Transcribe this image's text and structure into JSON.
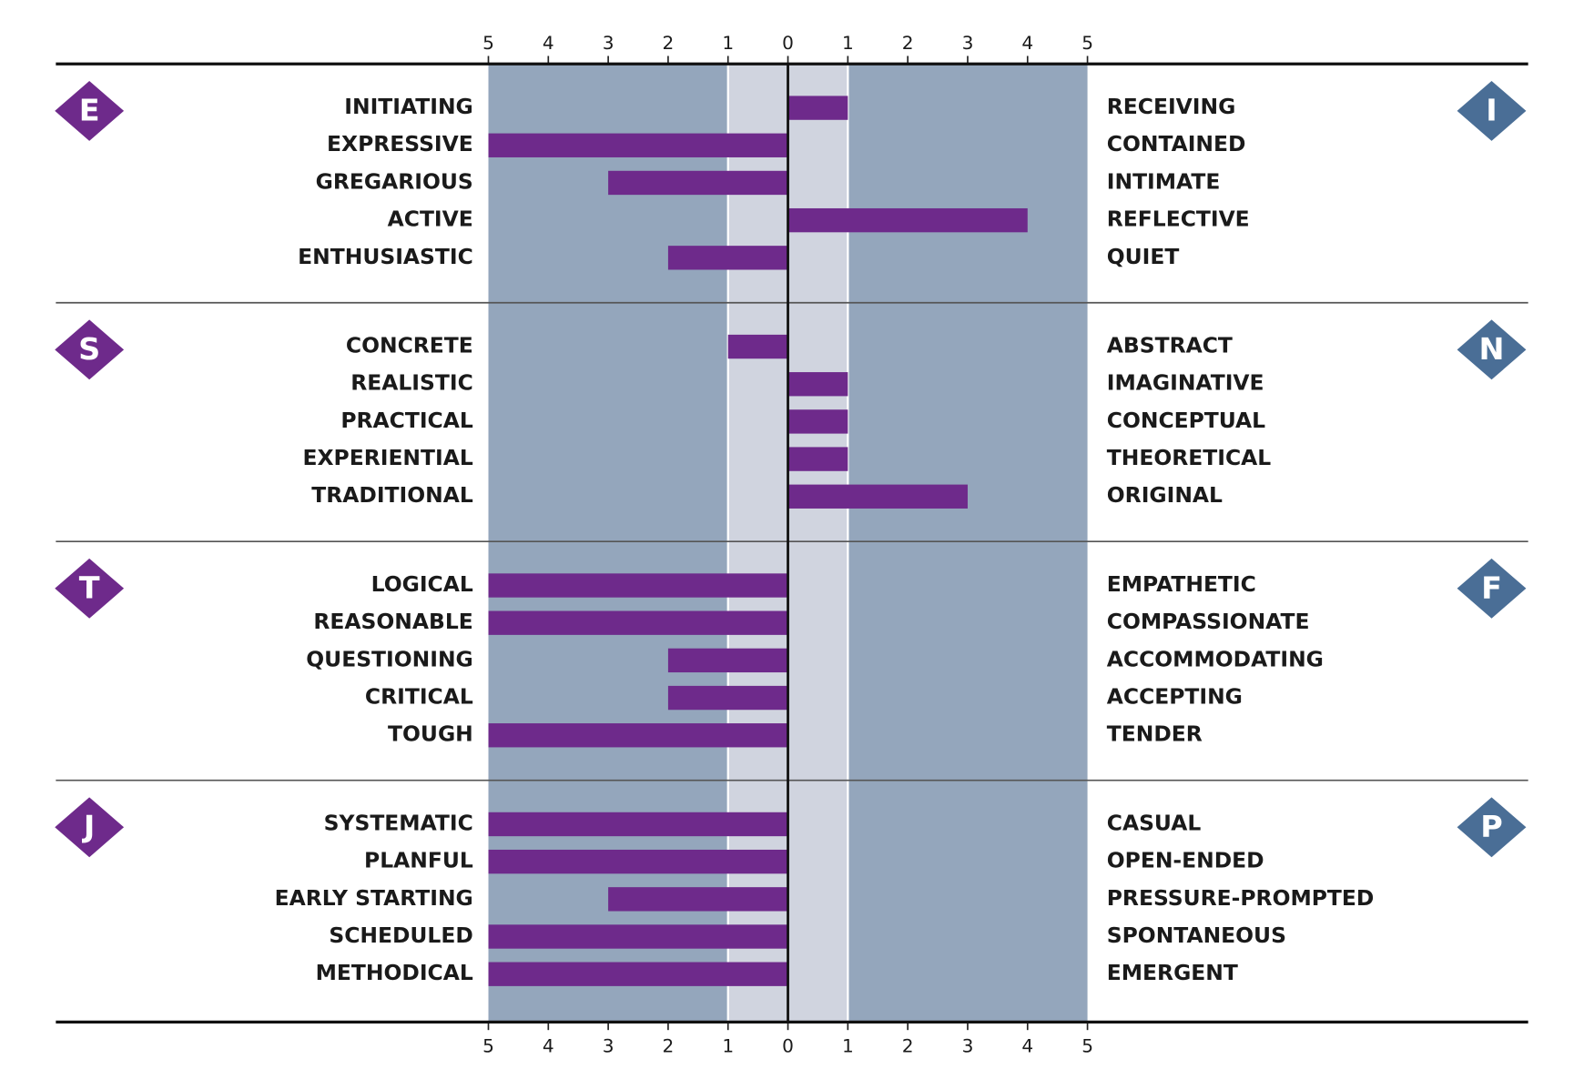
{
  "chart_data": {
    "type": "diverging_bar",
    "xlim": [
      -5,
      5
    ],
    "xticks": [
      {
        "value": -5,
        "label": "5"
      },
      {
        "value": -4,
        "label": "4"
      },
      {
        "value": -3,
        "label": "3"
      },
      {
        "value": -2,
        "label": "2"
      },
      {
        "value": -1,
        "label": "1"
      },
      0,
      1,
      2,
      3,
      4,
      5
    ],
    "color": "#6e2a8b",
    "left_pole_color": "#6e2a8b",
    "right_pole_color": "#4a6e96",
    "groups": [
      {
        "left_pole": "E",
        "right_pole": "I",
        "left_labels": [
          "INITIATING",
          "EXPRESSIVE",
          "GREGARIOUS",
          "ACTIVE",
          "ENTHUSIASTIC"
        ],
        "right_labels": [
          "RECEIVING",
          "CONTAINED",
          "INTIMATE",
          "REFLECTIVE",
          "QUIET"
        ],
        "values": [
          1,
          -5,
          -3,
          4,
          -2
        ]
      },
      {
        "left_pole": "S",
        "right_pole": "N",
        "left_labels": [
          "CONCRETE",
          "REALISTIC",
          "PRACTICAL",
          "EXPERIENTIAL",
          "TRADITIONAL"
        ],
        "right_labels": [
          "ABSTRACT",
          "IMAGINATIVE",
          "CONCEPTUAL",
          "THEORETICAL",
          "ORIGINAL"
        ],
        "values": [
          -1,
          1,
          1,
          1,
          3
        ]
      },
      {
        "left_pole": "T",
        "right_pole": "F",
        "left_labels": [
          "LOGICAL",
          "REASONABLE",
          "QUESTIONING",
          "CRITICAL",
          "TOUGH"
        ],
        "right_labels": [
          "EMPATHETIC",
          "COMPASSIONATE",
          "ACCOMMODATING",
          "ACCEPTING",
          "TENDER"
        ],
        "values": [
          -5,
          -5,
          -2,
          -2,
          -5
        ]
      },
      {
        "left_pole": "J",
        "right_pole": "P",
        "left_labels": [
          "SYSTEMATIC",
          "PLANFUL",
          "EARLY STARTING",
          "SCHEDULED",
          "METHODICAL"
        ],
        "right_labels": [
          "CASUAL",
          "OPEN-ENDED",
          "PRESSURE-PROMPTED",
          "SPONTANEOUS",
          "EMERGENT"
        ],
        "values": [
          -5,
          -5,
          -3,
          -5,
          -5
        ]
      }
    ]
  }
}
